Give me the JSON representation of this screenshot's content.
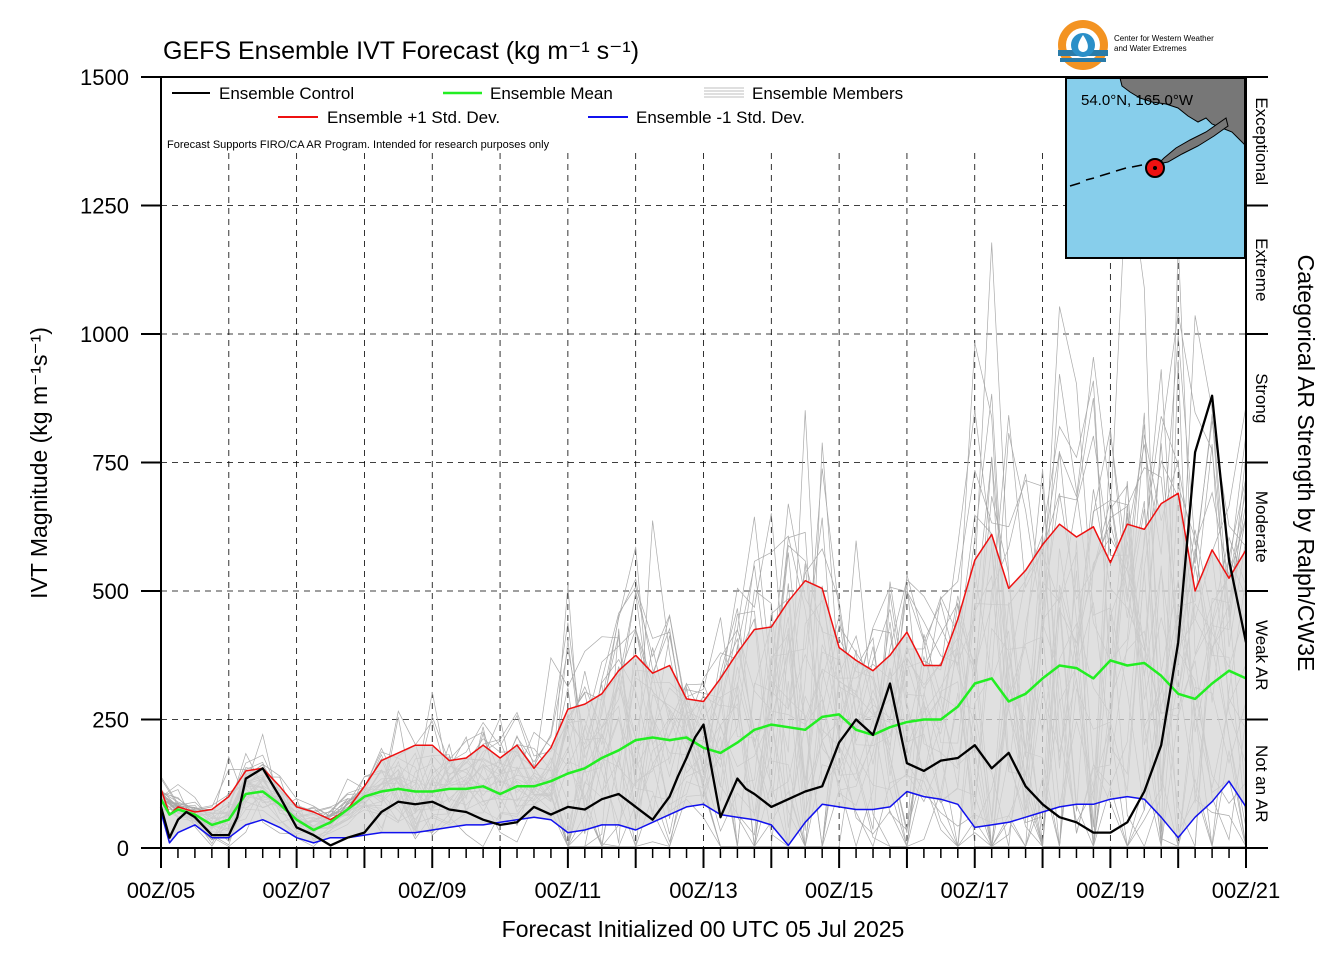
{
  "chart_data": {
    "type": "line",
    "title": "GEFS Ensemble IVT Forecast (kg m⁻¹ s⁻¹)",
    "xlabel": "Forecast Initialized 00 UTC 05 Jul 2025",
    "ylabel": "IVT Magnitude (kg m⁻¹s⁻¹)",
    "right_label": "Categorical AR Strength by Ralph/CW3E",
    "disclaimer": "Forecast Supports FIRO/CA AR Program. Intended for research purposes only",
    "logo_text": [
      "Center for Western Weather",
      "and Water Extremes"
    ],
    "inset_label": "54.0°N, 165.0°W",
    "ylim": [
      0,
      1500
    ],
    "xlim": [
      0,
      384
    ],
    "y_ticks": [
      0,
      250,
      500,
      750,
      1000,
      1250,
      1500
    ],
    "x_ticks": [
      {
        "h": 0,
        "label": "00Z/05"
      },
      {
        "h": 48,
        "label": "00Z/07"
      },
      {
        "h": 96,
        "label": "00Z/09"
      },
      {
        "h": 144,
        "label": "00Z/11"
      },
      {
        "h": 192,
        "label": "00Z/13"
      },
      {
        "h": 240,
        "label": "00Z/15"
      },
      {
        "h": 288,
        "label": "00Z/17"
      },
      {
        "h": 336,
        "label": "00Z/19"
      },
      {
        "h": 384,
        "label": "00Z/21"
      }
    ],
    "categories_right": [
      {
        "label": "Not an AR",
        "from": 0,
        "to": 250
      },
      {
        "label": "Weak AR",
        "from": 250,
        "to": 500
      },
      {
        "label": "Moderate",
        "from": 500,
        "to": 750
      },
      {
        "label": "Strong",
        "from": 750,
        "to": 1000
      },
      {
        "label": "Extreme",
        "from": 1000,
        "to": 1250
      },
      {
        "label": "Exceptional",
        "from": 1250,
        "to": 1500
      }
    ],
    "legend": {
      "control": "Ensemble Control",
      "mean": "Ensemble Mean",
      "members": "Ensemble Members",
      "plus": "Ensemble +1 Std. Dev.",
      "minus": "Ensemble -1 Std. Dev."
    },
    "colors": {
      "control": "#000000",
      "mean": "#22ee22",
      "plus": "#ee1111",
      "minus": "#1111ee",
      "members": "#aaaaaa",
      "fill": "#d6d6d6",
      "ocean": "#87ceeb",
      "land": "#777777"
    },
    "series": [
      {
        "name": "Ensemble Control",
        "key": "control",
        "x": [
          0,
          3,
          6,
          9,
          12,
          18,
          24,
          27,
          30,
          36,
          42,
          48,
          54,
          60,
          66,
          72,
          78,
          84,
          90,
          96,
          102,
          108,
          114,
          120,
          126,
          132,
          138,
          144,
          150,
          156,
          162,
          168,
          174,
          180,
          183,
          186,
          189,
          192,
          198,
          204,
          207,
          210,
          216,
          222,
          228,
          234,
          240,
          246,
          252,
          258,
          264,
          270,
          276,
          282,
          288,
          294,
          300,
          306,
          312,
          318,
          324,
          330,
          336,
          342,
          348,
          354,
          360,
          366,
          372,
          378,
          384
        ],
        "y": [
          80,
          20,
          55,
          70,
          60,
          25,
          25,
          60,
          135,
          155,
          100,
          40,
          25,
          5,
          20,
          30,
          70,
          90,
          85,
          90,
          75,
          70,
          55,
          45,
          50,
          80,
          65,
          80,
          75,
          95,
          105,
          80,
          55,
          100,
          140,
          175,
          215,
          240,
          60,
          135,
          115,
          105,
          80,
          95,
          110,
          120,
          205,
          250,
          220,
          320,
          165,
          150,
          170,
          175,
          200,
          155,
          185,
          120,
          85,
          60,
          50,
          30,
          30,
          50,
          110,
          200,
          400,
          770,
          880,
          560,
          400
        ]
      },
      {
        "name": "Ensemble Mean",
        "key": "mean",
        "x": [
          0,
          3,
          6,
          12,
          18,
          24,
          30,
          36,
          42,
          48,
          54,
          60,
          66,
          72,
          78,
          84,
          90,
          96,
          102,
          108,
          114,
          120,
          126,
          132,
          138,
          144,
          150,
          156,
          162,
          168,
          174,
          180,
          186,
          192,
          198,
          204,
          210,
          216,
          222,
          228,
          234,
          240,
          246,
          252,
          258,
          264,
          270,
          276,
          282,
          288,
          294,
          300,
          306,
          312,
          318,
          324,
          330,
          336,
          342,
          348,
          354,
          360,
          366,
          372,
          378,
          384
        ],
        "y": [
          95,
          65,
          75,
          65,
          45,
          55,
          105,
          110,
          85,
          55,
          35,
          50,
          75,
          100,
          110,
          115,
          110,
          110,
          115,
          115,
          120,
          105,
          120,
          120,
          130,
          145,
          155,
          175,
          190,
          210,
          215,
          210,
          215,
          195,
          185,
          205,
          230,
          240,
          235,
          230,
          255,
          260,
          230,
          220,
          235,
          245,
          250,
          250,
          275,
          320,
          330,
          285,
          300,
          330,
          355,
          350,
          330,
          365,
          355,
          360,
          335,
          300,
          290,
          320,
          345,
          330
        ]
      },
      {
        "name": "Ensemble +1 Std. Dev.",
        "key": "plus",
        "x": [
          0,
          3,
          6,
          12,
          18,
          24,
          30,
          36,
          42,
          48,
          54,
          60,
          66,
          72,
          78,
          84,
          90,
          96,
          102,
          108,
          114,
          120,
          126,
          132,
          138,
          144,
          150,
          156,
          162,
          168,
          174,
          180,
          186,
          192,
          198,
          204,
          210,
          216,
          222,
          228,
          234,
          240,
          246,
          252,
          258,
          264,
          270,
          276,
          282,
          288,
          294,
          300,
          306,
          312,
          318,
          324,
          330,
          336,
          342,
          348,
          354,
          360,
          366,
          372,
          378,
          384
        ],
        "y": [
          115,
          65,
          80,
          70,
          75,
          100,
          150,
          155,
          120,
          80,
          70,
          55,
          75,
          120,
          170,
          185,
          200,
          200,
          170,
          175,
          200,
          175,
          200,
          155,
          195,
          270,
          280,
          300,
          345,
          375,
          340,
          355,
          290,
          285,
          330,
          380,
          425,
          430,
          480,
          520,
          505,
          390,
          365,
          345,
          375,
          420,
          355,
          355,
          445,
          560,
          610,
          505,
          540,
          590,
          630,
          605,
          625,
          555,
          630,
          620,
          670,
          690,
          500,
          580,
          525,
          580
        ]
      },
      {
        "name": "Ensemble -1 Std. Dev.",
        "key": "minus",
        "x": [
          0,
          3,
          6,
          12,
          18,
          24,
          30,
          36,
          42,
          48,
          54,
          60,
          66,
          72,
          78,
          84,
          90,
          96,
          102,
          108,
          114,
          120,
          126,
          132,
          138,
          144,
          150,
          156,
          162,
          168,
          174,
          180,
          186,
          192,
          198,
          204,
          210,
          216,
          222,
          228,
          234,
          240,
          246,
          252,
          258,
          264,
          270,
          276,
          282,
          288,
          294,
          300,
          306,
          312,
          318,
          324,
          330,
          336,
          342,
          348,
          354,
          360,
          366,
          372,
          378,
          384
        ],
        "y": [
          70,
          10,
          30,
          45,
          20,
          20,
          45,
          55,
          40,
          20,
          10,
          20,
          20,
          25,
          30,
          30,
          30,
          35,
          40,
          45,
          45,
          50,
          55,
          60,
          55,
          30,
          35,
          45,
          45,
          35,
          50,
          65,
          80,
          85,
          65,
          60,
          55,
          45,
          5,
          50,
          85,
          80,
          75,
          75,
          80,
          110,
          100,
          95,
          85,
          40,
          45,
          50,
          60,
          70,
          80,
          85,
          85,
          95,
          100,
          95,
          60,
          20,
          60,
          90,
          130,
          80
        ]
      }
    ]
  }
}
